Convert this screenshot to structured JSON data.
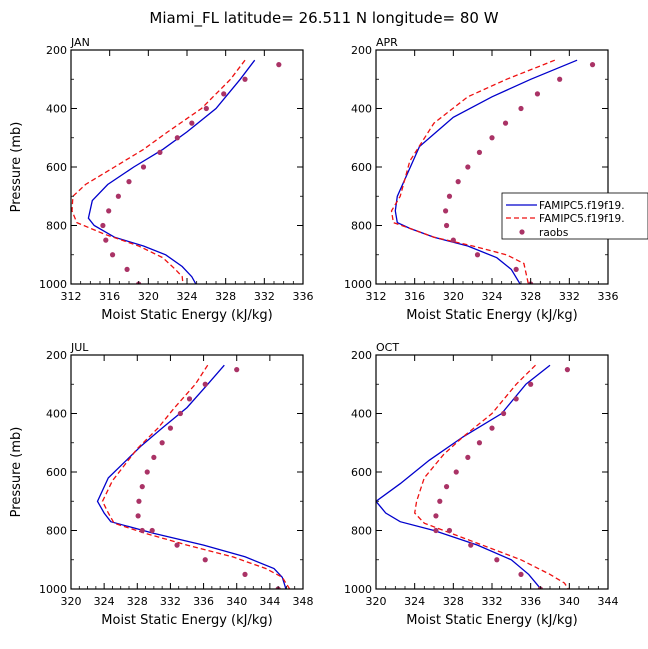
{
  "figure": {
    "title": "Miami_FL  latitude= 26.511 N longitude= 80 W"
  },
  "colors": {
    "model1": "#0000cc",
    "model2": "#ee1111",
    "obs": "#aa3366"
  },
  "chart_data": [
    {
      "type": "line",
      "panel": "JAN",
      "xlabel": "Moist Static Energy (kJ/kg)",
      "ylabel": "Pressure (mb)",
      "xlim": [
        312,
        336
      ],
      "ylim": [
        1000,
        200
      ],
      "xticks": [
        312,
        316,
        320,
        324,
        328,
        332,
        336
      ],
      "yticks": [
        200,
        400,
        600,
        800,
        1000
      ],
      "legend": [],
      "series": [
        {
          "key": "model1",
          "style": "solid",
          "x": [
            331.0,
            329.5,
            327.0,
            324.0,
            321.5,
            318.5,
            315.8,
            314.2,
            313.8,
            314.4,
            316.5,
            319.5,
            321.8,
            323.5,
            324.5,
            325.0
          ],
          "y": [
            235,
            300,
            400,
            480,
            540,
            600,
            660,
            715,
            775,
            800,
            840,
            870,
            900,
            940,
            975,
            1005
          ]
        },
        {
          "key": "model2",
          "style": "dashed",
          "x": [
            330.0,
            328.5,
            325.5,
            322.0,
            319.5,
            316.5,
            313.5,
            312.2,
            312.1,
            312.6,
            315.5,
            319.0,
            321.5,
            322.8,
            323.5,
            323.6
          ],
          "y": [
            235,
            300,
            400,
            480,
            540,
            600,
            660,
            700,
            750,
            790,
            830,
            870,
            910,
            950,
            975,
            1005
          ]
        },
        {
          "key": "obs",
          "style": "markers",
          "x": [
            333.5,
            330.0,
            327.8,
            326.0,
            324.5,
            323.0,
            321.2,
            319.5,
            318.0,
            316.9,
            315.9,
            315.3,
            315.6,
            316.3,
            317.8,
            319.0
          ],
          "y": [
            250,
            300,
            350,
            400,
            450,
            500,
            550,
            600,
            650,
            700,
            750,
            800,
            850,
            900,
            950,
            1000
          ]
        }
      ]
    },
    {
      "type": "line",
      "panel": "APR",
      "xlabel": "Moist Static Energy (kJ/kg)",
      "ylabel": "",
      "xlim": [
        312,
        336
      ],
      "ylim": [
        1000,
        200
      ],
      "xticks": [
        312,
        316,
        320,
        324,
        328,
        332,
        336
      ],
      "yticks": [
        200,
        400,
        600,
        800,
        1000
      ],
      "legend": [
        "FAMIPC5.f19f19.",
        "FAMIPC5.f19f19.",
        "raobs"
      ],
      "series": [
        {
          "key": "model1",
          "style": "solid",
          "x": [
            332.8,
            328.0,
            324.0,
            320.0,
            316.5,
            314.2,
            314.0,
            314.2,
            315.5,
            318.0,
            321.5,
            324.5,
            326.0,
            327.0
          ],
          "y": [
            235,
            300,
            360,
            430,
            530,
            700,
            750,
            790,
            810,
            840,
            870,
            910,
            950,
            1005
          ]
        },
        {
          "key": "model2",
          "style": "dashed",
          "x": [
            330.5,
            325.5,
            321.5,
            318.0,
            315.5,
            314.5,
            313.6,
            313.8,
            315.5,
            318.0,
            322.0,
            325.5,
            327.3,
            327.8
          ],
          "y": [
            235,
            300,
            360,
            450,
            580,
            700,
            750,
            790,
            810,
            840,
            870,
            900,
            930,
            1005
          ]
        },
        {
          "key": "obs",
          "style": "markers",
          "x": [
            334.4,
            331.0,
            328.7,
            327.0,
            325.4,
            324.0,
            322.7,
            321.5,
            320.5,
            319.6,
            319.2,
            319.3,
            320.0,
            322.5,
            326.5,
            328.0
          ],
          "y": [
            250,
            300,
            350,
            400,
            450,
            500,
            550,
            600,
            650,
            700,
            750,
            800,
            850,
            900,
            950,
            1000
          ]
        }
      ]
    },
    {
      "type": "line",
      "panel": "JUL",
      "xlabel": "Moist Static Energy (kJ/kg)",
      "ylabel": "Pressure (mb)",
      "xlim": [
        320,
        348
      ],
      "ylim": [
        1000,
        200
      ],
      "xticks": [
        320,
        324,
        328,
        332,
        336,
        340,
        344,
        348
      ],
      "yticks": [
        200,
        400,
        600,
        800,
        1000
      ],
      "legend": [],
      "series": [
        {
          "key": "model1",
          "style": "solid",
          "x": [
            338.5,
            336.5,
            334.0,
            331.0,
            328.5,
            324.5,
            323.2,
            324.0,
            324.8,
            330.0,
            336.0,
            341.0,
            344.5,
            345.5,
            346.0
          ],
          "y": [
            235,
            300,
            380,
            450,
            510,
            620,
            700,
            740,
            770,
            810,
            850,
            890,
            930,
            960,
            1005
          ]
        },
        {
          "key": "model2",
          "style": "dashed",
          "x": [
            336.5,
            335.0,
            332.5,
            330.5,
            328.0,
            325.0,
            323.8,
            324.5,
            325.2,
            329.0,
            334.0,
            339.5,
            343.5,
            345.5,
            346.5
          ],
          "y": [
            235,
            300,
            380,
            450,
            520,
            630,
            700,
            740,
            775,
            810,
            850,
            890,
            930,
            960,
            1005
          ]
        },
        {
          "key": "obs",
          "style": "markers",
          "x": [
            340.0,
            336.2,
            334.3,
            333.2,
            332.0,
            331.0,
            330.0,
            329.2,
            328.6,
            328.2,
            328.1,
            328.6,
            329.8,
            332.8,
            336.2,
            341.0,
            345.0
          ],
          "y": [
            250,
            300,
            350,
            400,
            450,
            500,
            550,
            600,
            650,
            700,
            750,
            800,
            800,
            850,
            900,
            950,
            1000
          ]
        }
      ]
    },
    {
      "type": "line",
      "panel": "OCT",
      "xlabel": "Moist Static Energy (kJ/kg)",
      "ylabel": "",
      "xlim": [
        320,
        344
      ],
      "ylim": [
        1000,
        200
      ],
      "xticks": [
        320,
        324,
        328,
        332,
        336,
        340,
        344
      ],
      "yticks": [
        200,
        400,
        600,
        800,
        1000
      ],
      "legend": [],
      "series": [
        {
          "key": "model1",
          "style": "solid",
          "x": [
            338.0,
            335.5,
            333.0,
            329.0,
            325.5,
            322.5,
            320.0,
            321.0,
            322.5,
            326.0,
            330.5,
            334.0,
            335.8,
            336.8,
            337.2
          ],
          "y": [
            235,
            300,
            400,
            480,
            560,
            640,
            700,
            740,
            770,
            800,
            850,
            900,
            950,
            990,
            1005
          ]
        },
        {
          "key": "model2",
          "style": "dashed",
          "x": [
            336.5,
            334.5,
            332.0,
            329.0,
            327.0,
            325.0,
            324.2,
            324.0,
            325.0,
            327.0,
            331.0,
            335.0,
            338.0,
            339.5,
            340.0
          ],
          "y": [
            235,
            300,
            400,
            480,
            540,
            620,
            700,
            740,
            775,
            800,
            850,
            900,
            950,
            980,
            1005
          ]
        },
        {
          "key": "obs",
          "style": "markers",
          "x": [
            339.8,
            336.0,
            334.5,
            333.2,
            332.0,
            330.7,
            329.5,
            328.3,
            327.3,
            326.6,
            326.2,
            326.2,
            327.6,
            329.8,
            332.5,
            335.0,
            337.0
          ],
          "y": [
            250,
            300,
            350,
            400,
            450,
            500,
            550,
            600,
            650,
            700,
            750,
            800,
            800,
            850,
            900,
            950,
            1000
          ]
        }
      ]
    }
  ]
}
